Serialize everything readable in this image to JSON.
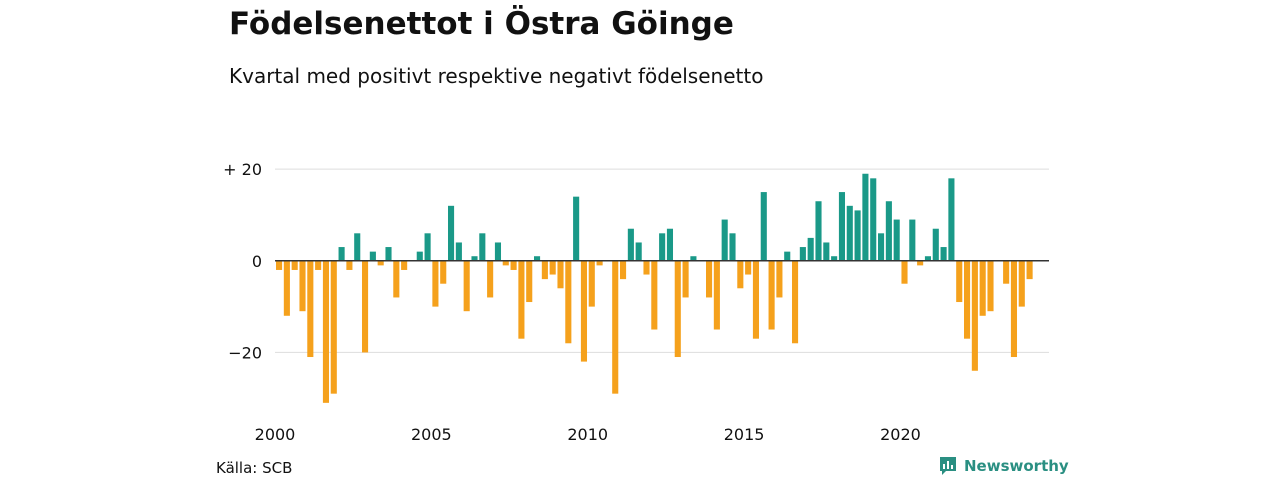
{
  "title": "Födelsenettot i Östra Göinge",
  "subtitle": "Kvartal med positivt respektive negativt födelsenetto",
  "source": "Källa: SCB",
  "brand": "Newsworthy",
  "colors": {
    "positive": "#1a9988",
    "negative": "#f5a11c",
    "grid": "#dddddd",
    "zero": "#333333",
    "brand": "#2a8f82"
  },
  "chart_data": {
    "type": "bar",
    "ylim": [
      -33,
      22
    ],
    "xlim": [
      2000,
      2024.75
    ],
    "yticks": [
      {
        "value": 20,
        "label": "+ 20"
      },
      {
        "value": 0,
        "label": "0"
      },
      {
        "value": -20,
        "label": "−20"
      }
    ],
    "xticks": [
      {
        "value": 2000,
        "label": "2000"
      },
      {
        "value": 2005,
        "label": "2005"
      },
      {
        "value": 2010,
        "label": "2010"
      },
      {
        "value": 2015,
        "label": "2015"
      },
      {
        "value": 2020,
        "label": "2020"
      }
    ],
    "grid": true,
    "start_year": 2000,
    "values": [
      -2,
      -12,
      -2,
      -11,
      -21,
      -2,
      -31,
      -29,
      3,
      -2,
      6,
      -20,
      2,
      -1,
      3,
      -8,
      -2,
      0,
      2,
      6,
      -10,
      -5,
      12,
      4,
      -11,
      1,
      6,
      -8,
      4,
      -1,
      -2,
      -17,
      -9,
      1,
      -4,
      -3,
      -6,
      -18,
      14,
      -22,
      -10,
      -1,
      0,
      -29,
      -4,
      7,
      4,
      -3,
      -15,
      6,
      7,
      -21,
      -8,
      1,
      0,
      -8,
      -15,
      9,
      6,
      -6,
      -3,
      -17,
      15,
      -15,
      -8,
      2,
      -18,
      3,
      5,
      13,
      4,
      1,
      15,
      12,
      11,
      19,
      18,
      6,
      13,
      9,
      -5,
      9,
      -1,
      1,
      7,
      3,
      18,
      -9,
      -17,
      -24,
      -12,
      -11,
      0,
      -5,
      -21,
      -10,
      -4
    ]
  }
}
